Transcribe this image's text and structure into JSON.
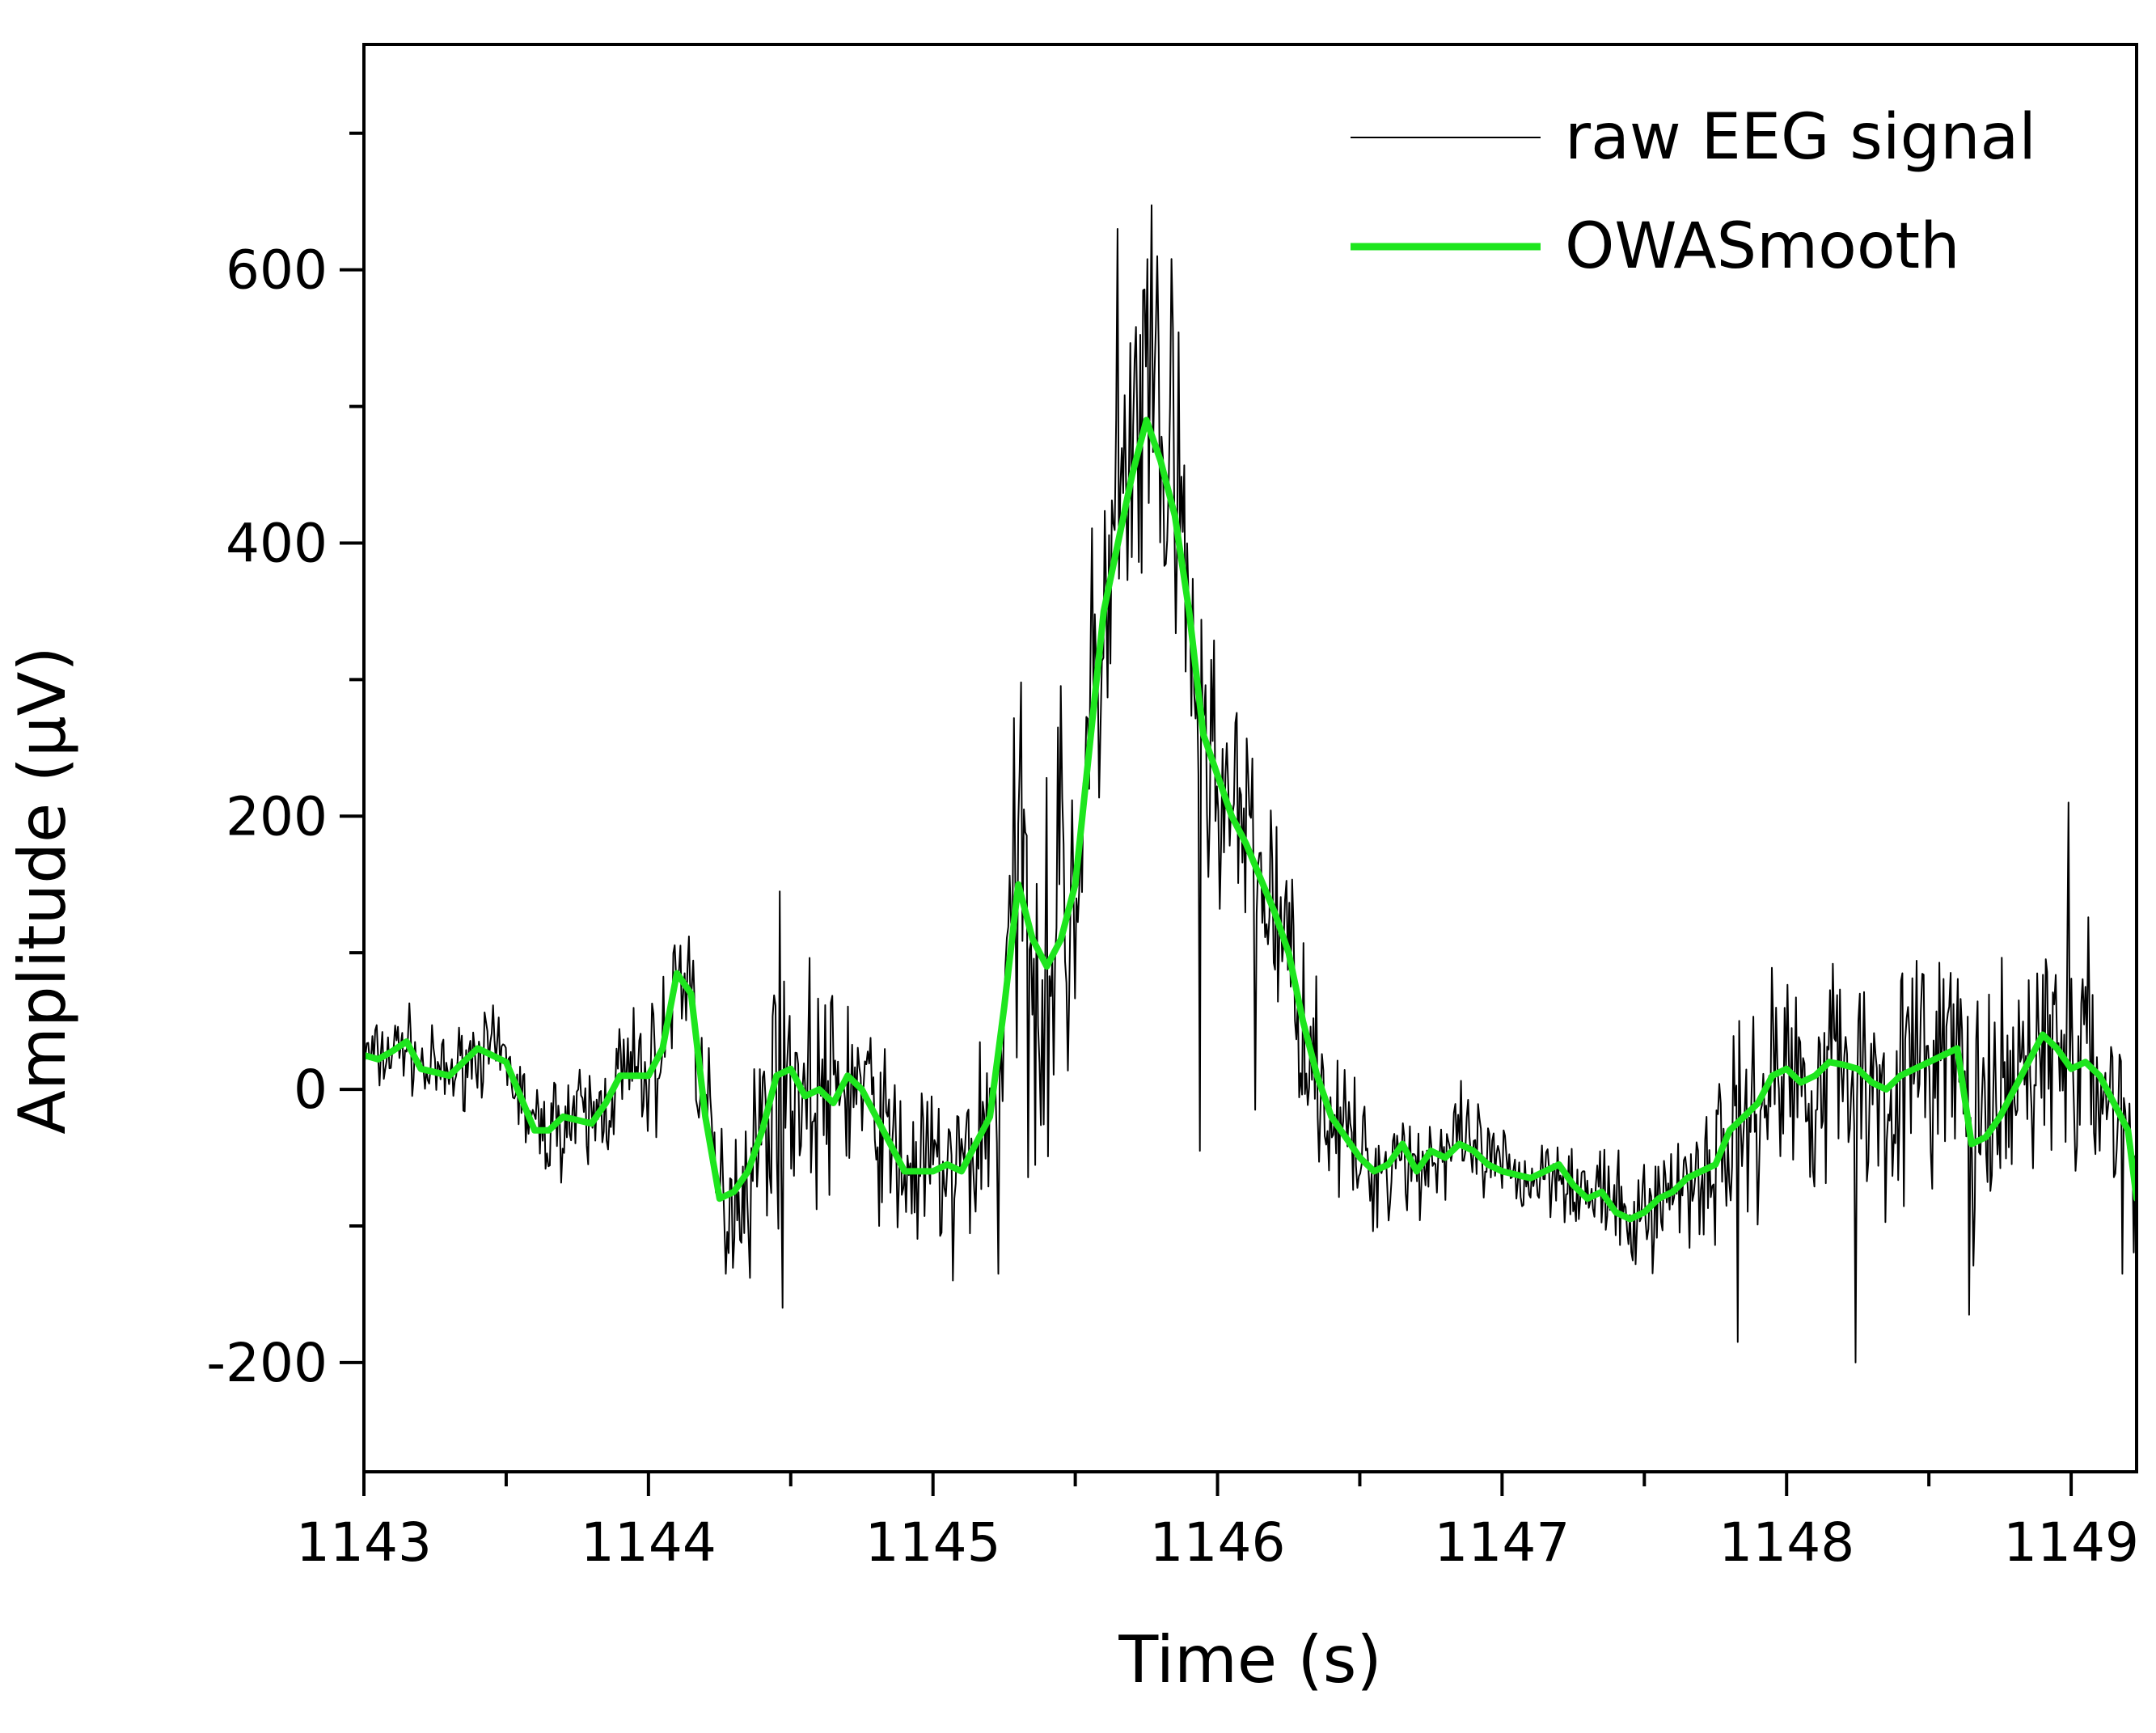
{
  "chart_data": {
    "type": "line",
    "title": "",
    "xlabel": "Time (s)",
    "ylabel": "Amplitude (μV)",
    "xlim": [
      1143,
      1149.23
    ],
    "ylim": [
      -280,
      765
    ],
    "grid": false,
    "legend_position": "top-right",
    "x_ticks": [
      1143,
      1144,
      1145,
      1146,
      1147,
      1148,
      1149
    ],
    "x_tick_labels": [
      "1143",
      "1144",
      "1145",
      "1146",
      "1147",
      "1148",
      "1149"
    ],
    "x_minor_ticks": [
      1143.5,
      1144.5,
      1145.5,
      1146.5,
      1147.5,
      1148.5
    ],
    "y_ticks": [
      -200,
      0,
      200,
      400,
      600
    ],
    "y_tick_labels": [
      "-200",
      "0",
      "200",
      "400",
      "600"
    ],
    "y_minor_ticks": [
      -100,
      100,
      300,
      500,
      700
    ],
    "series": [
      {
        "name": "raw EEG signal",
        "color": "#000000",
        "style": "thin",
        "noise_seed": 7,
        "sample_count": 1250,
        "envelope": {
          "x": [
            1143.0,
            1143.3,
            1143.6,
            1143.8,
            1144.0,
            1144.15,
            1144.3,
            1144.5,
            1144.75,
            1145.0,
            1145.2,
            1145.35,
            1145.5,
            1145.7,
            1145.85,
            1146.0,
            1146.2,
            1146.5,
            1146.8,
            1147.0,
            1147.4,
            1147.8,
            1148.0,
            1148.3,
            1148.6,
            1148.9,
            1149.23
          ],
          "y": [
            25,
            25,
            30,
            40,
            45,
            45,
            60,
            85,
            60,
            55,
            70,
            150,
            120,
            130,
            120,
            90,
            70,
            40,
            35,
            30,
            30,
            60,
            80,
            75,
            80,
            80,
            70
          ]
        },
        "spikes": [
          {
            "x": 1145.65,
            "y": 630
          },
          {
            "x": 1145.79,
            "y": 610
          },
          {
            "x": 1145.84,
            "y": 608
          },
          {
            "x": 1145.74,
            "y": 585
          },
          {
            "x": 1145.31,
            "y": 298
          },
          {
            "x": 1145.44,
            "y": 265
          },
          {
            "x": 1145.55,
            "y": 220
          },
          {
            "x": 1148.99,
            "y": 210
          },
          {
            "x": 1144.46,
            "y": 145
          },
          {
            "x": 1144.14,
            "y": 112
          },
          {
            "x": 1144.27,
            "y": -135
          },
          {
            "x": 1144.47,
            "y": -160
          },
          {
            "x": 1145.07,
            "y": -140
          },
          {
            "x": 1145.23,
            "y": -135
          },
          {
            "x": 1147.47,
            "y": -128
          },
          {
            "x": 1147.83,
            "y": -185
          },
          {
            "x": 1148.24,
            "y": -200
          },
          {
            "x": 1148.64,
            "y": -165
          },
          {
            "x": 1149.18,
            "y": -135
          },
          {
            "x": 1145.94,
            "y": -45
          },
          {
            "x": 1146.13,
            "y": -15
          }
        ]
      },
      {
        "name": "OWASmooth",
        "color": "#1ee61e",
        "style": "thick",
        "x": [
          1143.0,
          1143.05,
          1143.1,
          1143.15,
          1143.2,
          1143.3,
          1143.4,
          1143.5,
          1143.6,
          1143.65,
          1143.7,
          1143.8,
          1143.85,
          1143.9,
          1144.0,
          1144.05,
          1144.1,
          1144.15,
          1144.2,
          1144.25,
          1144.3,
          1144.35,
          1144.4,
          1144.45,
          1144.5,
          1144.55,
          1144.6,
          1144.65,
          1144.7,
          1144.75,
          1144.8,
          1144.9,
          1145.0,
          1145.05,
          1145.1,
          1145.2,
          1145.25,
          1145.3,
          1145.35,
          1145.4,
          1145.45,
          1145.5,
          1145.55,
          1145.6,
          1145.65,
          1145.7,
          1145.75,
          1145.8,
          1145.85,
          1145.9,
          1145.95,
          1146.0,
          1146.05,
          1146.1,
          1146.15,
          1146.2,
          1146.25,
          1146.3,
          1146.35,
          1146.4,
          1146.5,
          1146.55,
          1146.6,
          1146.65,
          1146.7,
          1146.75,
          1146.8,
          1146.85,
          1146.9,
          1146.95,
          1147.0,
          1147.1,
          1147.2,
          1147.25,
          1147.3,
          1147.35,
          1147.4,
          1147.45,
          1147.5,
          1147.55,
          1147.6,
          1147.65,
          1147.7,
          1147.75,
          1147.8,
          1147.85,
          1147.9,
          1147.95,
          1148.0,
          1148.05,
          1148.1,
          1148.15,
          1148.2,
          1148.25,
          1148.3,
          1148.35,
          1148.4,
          1148.45,
          1148.5,
          1148.55,
          1148.6,
          1148.65,
          1148.7,
          1148.75,
          1148.8,
          1148.85,
          1148.9,
          1148.95,
          1149.0,
          1149.05,
          1149.1,
          1149.15,
          1149.2,
          1149.23
        ],
        "values": [
          25,
          22,
          28,
          35,
          15,
          10,
          30,
          20,
          -30,
          -30,
          -20,
          -25,
          -10,
          10,
          10,
          30,
          85,
          70,
          -20,
          -80,
          -75,
          -60,
          -30,
          10,
          15,
          -5,
          0,
          -10,
          10,
          0,
          -20,
          -60,
          -60,
          -55,
          -60,
          -20,
          60,
          150,
          110,
          90,
          110,
          150,
          250,
          350,
          400,
          450,
          490,
          460,
          420,
          350,
          260,
          230,
          200,
          180,
          155,
          130,
          100,
          50,
          10,
          -20,
          -50,
          -60,
          -55,
          -40,
          -60,
          -45,
          -50,
          -40,
          -45,
          -55,
          -60,
          -65,
          -55,
          -70,
          -80,
          -75,
          -90,
          -95,
          -90,
          -80,
          -75,
          -65,
          -60,
          -55,
          -30,
          -20,
          -10,
          10,
          15,
          5,
          10,
          20,
          18,
          15,
          5,
          0,
          10,
          15,
          20,
          25,
          30,
          -40,
          -35,
          -20,
          0,
          20,
          40,
          30,
          15,
          20,
          10,
          -10,
          -30,
          -80
        ]
      }
    ]
  }
}
